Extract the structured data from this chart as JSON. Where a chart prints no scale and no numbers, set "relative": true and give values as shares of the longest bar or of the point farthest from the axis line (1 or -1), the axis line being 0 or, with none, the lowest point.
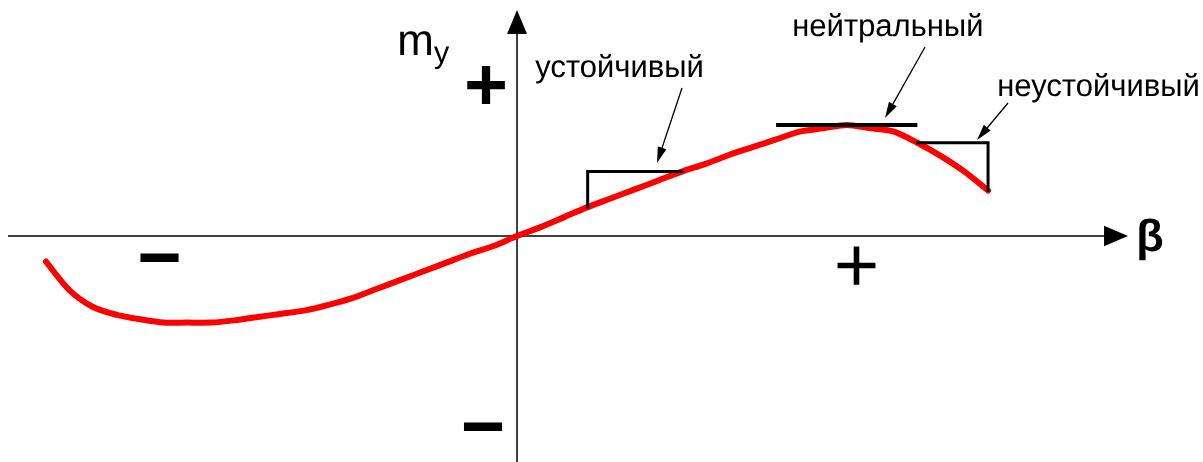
{
  "chart_data": {
    "type": "line",
    "relative": true,
    "xlabel": "β",
    "ylabel": "m$_{y}$",
    "categories": [
      null,
      null,
      null,
      null,
      null,
      null,
      null,
      null,
      null,
      null,
      null,
      null,
      null,
      null,
      null,
      null,
      null,
      null,
      null,
      null,
      null,
      null,
      null,
      null,
      null,
      null,
      null,
      null,
      null,
      null,
      null,
      null,
      null,
      null,
      null,
      null,
      null,
      null,
      null,
      null,
      null
    ],
    "values": [
      -0.23,
      -0.49,
      -0.64,
      -0.71,
      -0.75,
      -0.78,
      -0.78,
      -0.78,
      -0.76,
      -0.73,
      -0.7,
      -0.67,
      -0.62,
      -0.56,
      -0.48,
      -0.4,
      -0.32,
      -0.24,
      -0.16,
      -0.09,
      0,
      0.08,
      0.17,
      0.26,
      0.34,
      0.42,
      0.5,
      0.58,
      0.65,
      0.73,
      0.8,
      0.87,
      0.94,
      0.97,
      1,
      0.97,
      0.94,
      0.84,
      0.72,
      0.58,
      0.41
    ],
    "color": "#ff0000",
    "annotations": [
      "+",
      "−",
      "−",
      "+",
      "устойчивый",
      "нейтральный",
      "неустойчивый"
    ]
  }
}
